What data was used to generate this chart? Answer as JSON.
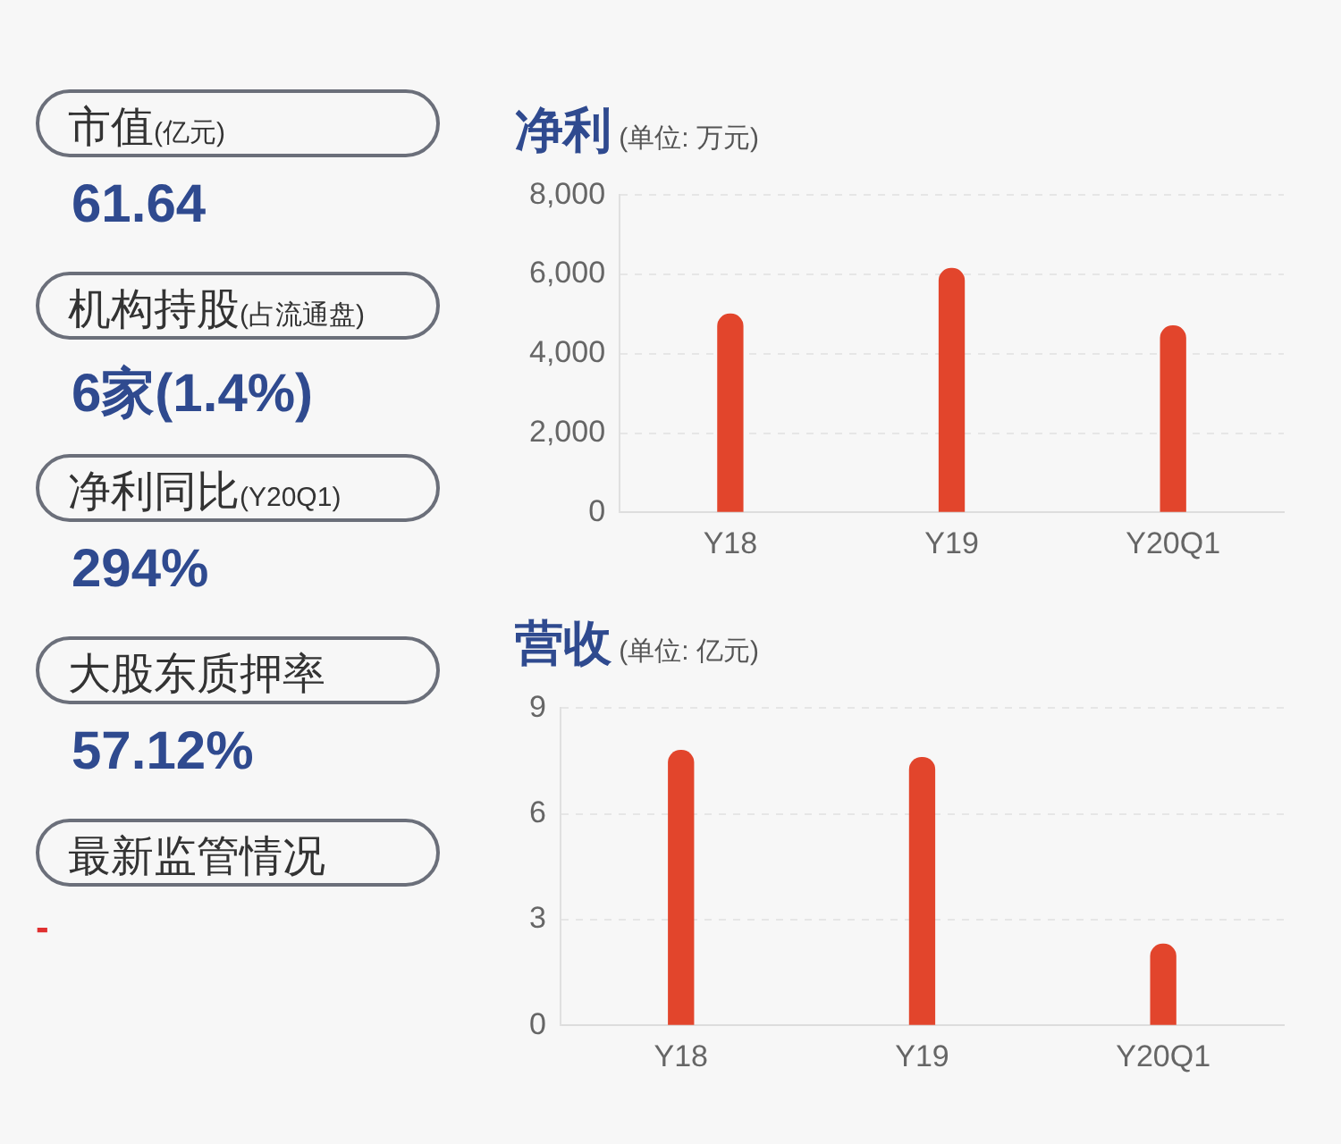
{
  "chart_data": [
    {
      "type": "other",
      "annotations": [
        "市值(亿元)",
        "61.64",
        "机构持股(占流通盘)",
        "6家(1.4%)",
        "净利同比(Y20Q1)",
        "294%",
        "大股东质押率",
        "57.12%",
        "最新监管情况",
        "-"
      ]
    },
    {
      "type": "bar",
      "title": "净利",
      "subtitle": "(单位: 万元)",
      "categories": [
        "Y18",
        "Y19",
        "Y20Q1"
      ],
      "values": [
        5000,
        6150,
        4700
      ],
      "color": "#e2452c",
      "ylim": [
        0,
        8000
      ],
      "yticks": [
        0,
        {
          "value": 2000,
          "label": "2,000"
        },
        {
          "value": 4000,
          "label": "4,000"
        },
        {
          "value": 6000,
          "label": "6,000"
        },
        {
          "value": 8000,
          "label": "8,000"
        }
      ],
      "grid": "y"
    },
    {
      "type": "bar",
      "title": "营收",
      "subtitle": "(单位: 亿元)",
      "categories": [
        "Y18",
        "Y19",
        "Y20Q1"
      ],
      "values": [
        7.8,
        7.6,
        2.3
      ],
      "color": "#e2452c",
      "ylim": [
        0,
        9
      ],
      "yticks": [
        0,
        3,
        6,
        9
      ],
      "grid": "y"
    }
  ]
}
